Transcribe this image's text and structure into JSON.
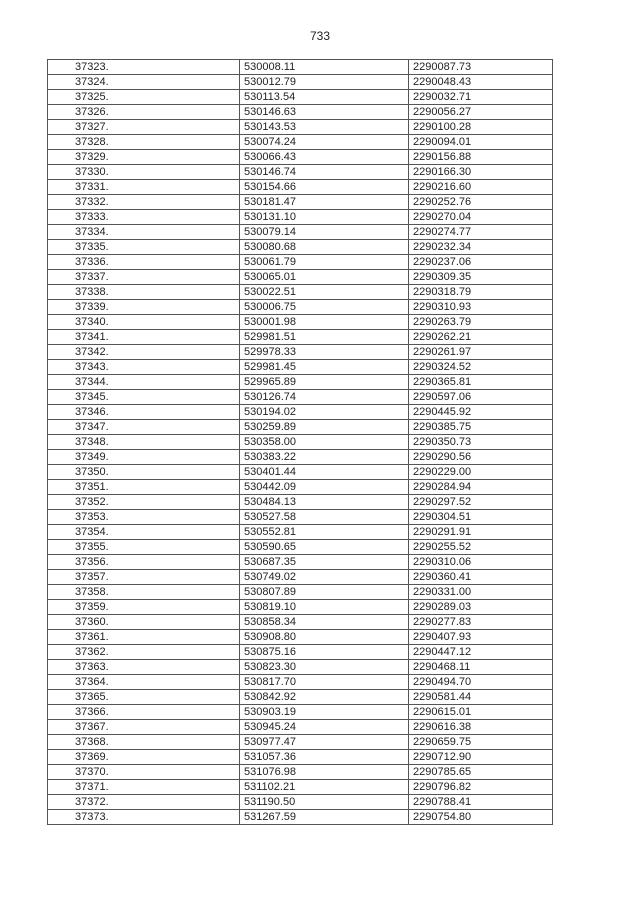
{
  "page_number": "733",
  "rows": [
    [
      "37323.",
      "530008.11",
      "2290087.73"
    ],
    [
      "37324.",
      "530012.79",
      "2290048.43"
    ],
    [
      "37325.",
      "530113.54",
      "2290032.71"
    ],
    [
      "37326.",
      "530146.63",
      "2290056.27"
    ],
    [
      "37327.",
      "530143.53",
      "2290100.28"
    ],
    [
      "37328.",
      "530074.24",
      "2290094.01"
    ],
    [
      "37329.",
      "530066.43",
      "2290156.88"
    ],
    [
      "37330.",
      "530146.74",
      "2290166.30"
    ],
    [
      "37331.",
      "530154.66",
      "2290216.60"
    ],
    [
      "37332.",
      "530181.47",
      "2290252.76"
    ],
    [
      "37333.",
      "530131.10",
      "2290270.04"
    ],
    [
      "37334.",
      "530079.14",
      "2290274.77"
    ],
    [
      "37335.",
      "530080.68",
      "2290232.34"
    ],
    [
      "37336.",
      "530061.79",
      "2290237.06"
    ],
    [
      "37337.",
      "530065.01",
      "2290309.35"
    ],
    [
      "37338.",
      "530022.51",
      "2290318.79"
    ],
    [
      "37339.",
      "530006.75",
      "2290310.93"
    ],
    [
      "37340.",
      "530001.98",
      "2290263.79"
    ],
    [
      "37341.",
      "529981.51",
      "2290262.21"
    ],
    [
      "37342.",
      "529978.33",
      "2290261.97"
    ],
    [
      "37343.",
      "529981.45",
      "2290324.52"
    ],
    [
      "37344.",
      "529965.89",
      "2290365.81"
    ],
    [
      "37345.",
      "530126.74",
      "2290597.06"
    ],
    [
      "37346.",
      "530194.02",
      "2290445.92"
    ],
    [
      "37347.",
      "530259.89",
      "2290385.75"
    ],
    [
      "37348.",
      "530358.00",
      "2290350.73"
    ],
    [
      "37349.",
      "530383.22",
      "2290290.56"
    ],
    [
      "37350.",
      "530401.44",
      "2290229.00"
    ],
    [
      "37351.",
      "530442.09",
      "2290284.94"
    ],
    [
      "37352.",
      "530484.13",
      "2290297.52"
    ],
    [
      "37353.",
      "530527.58",
      "2290304.51"
    ],
    [
      "37354.",
      "530552.81",
      "2290291.91"
    ],
    [
      "37355.",
      "530590.65",
      "2290255.52"
    ],
    [
      "37356.",
      "530687.35",
      "2290310.06"
    ],
    [
      "37357.",
      "530749.02",
      "2290360.41"
    ],
    [
      "37358.",
      "530807.89",
      "2290331.00"
    ],
    [
      "37359.",
      "530819.10",
      "2290289.03"
    ],
    [
      "37360.",
      "530858.34",
      "2290277.83"
    ],
    [
      "37361.",
      "530908.80",
      "2290407.93"
    ],
    [
      "37362.",
      "530875.16",
      "2290447.12"
    ],
    [
      "37363.",
      "530823.30",
      "2290468.11"
    ],
    [
      "37364.",
      "530817.70",
      "2290494.70"
    ],
    [
      "37365.",
      "530842.92",
      "2290581.44"
    ],
    [
      "37366.",
      "530903.19",
      "2290615.01"
    ],
    [
      "37367.",
      "530945.24",
      "2290616.38"
    ],
    [
      "37368.",
      "530977.47",
      "2290659.75"
    ],
    [
      "37369.",
      "531057.36",
      "2290712.90"
    ],
    [
      "37370.",
      "531076.98",
      "2290785.65"
    ],
    [
      "37371.",
      "531102.21",
      "2290796.82"
    ],
    [
      "37372.",
      "531190.50",
      "2290788.41"
    ],
    [
      "37373.",
      "531267.59",
      "2290754.80"
    ]
  ]
}
